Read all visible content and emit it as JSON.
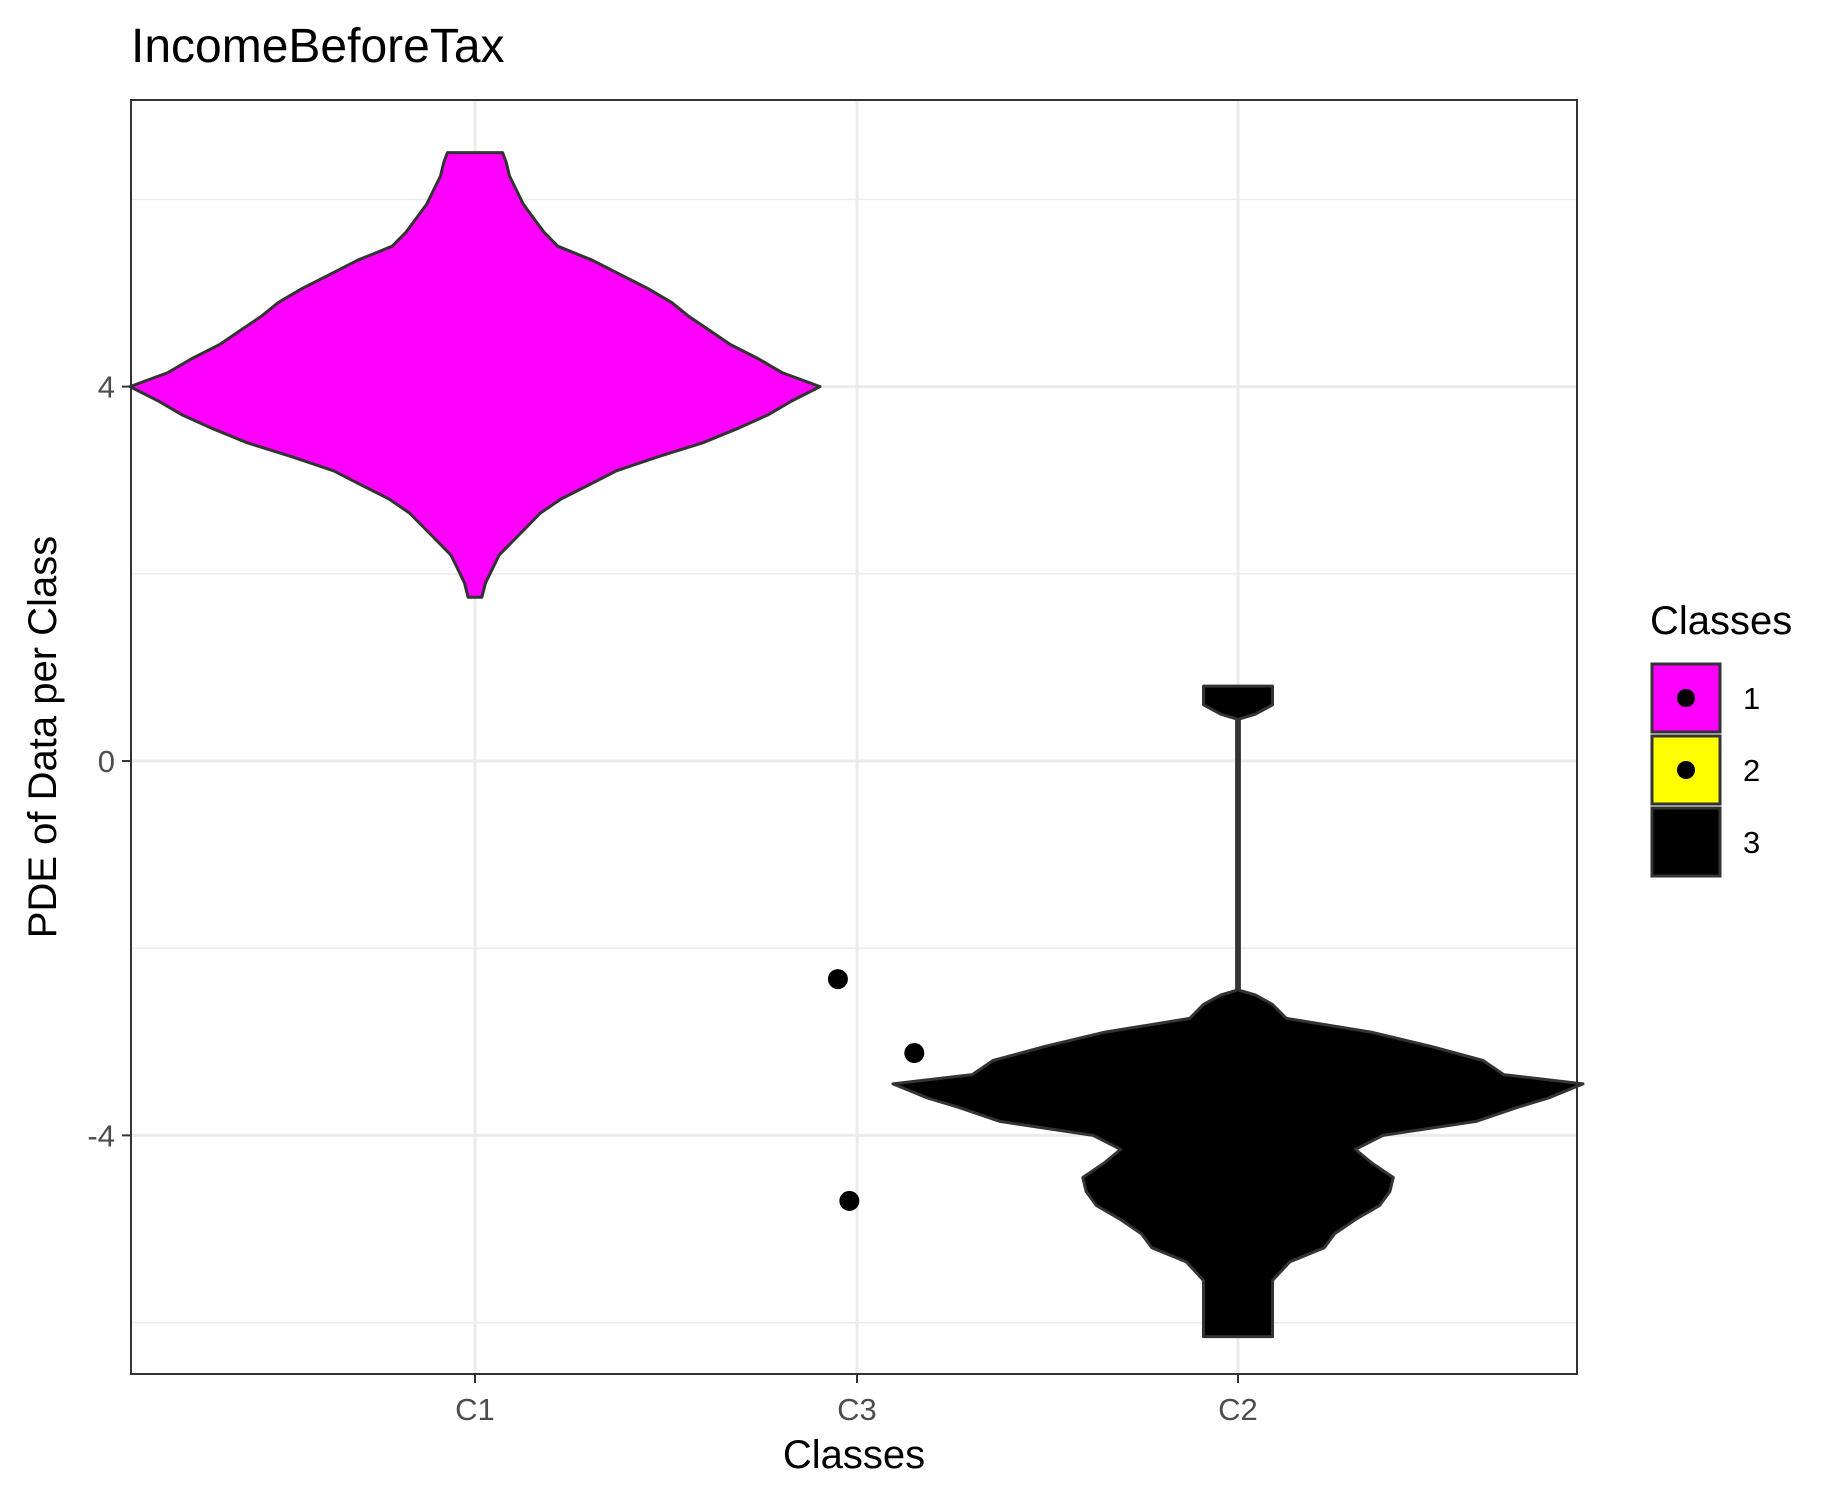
{
  "chart_data": {
    "type": "violin",
    "title": "IncomeBeforeTax",
    "xlabel": "Classes",
    "ylabel": "PDE of Data per Class",
    "categories": [
      "C1",
      "C3",
      "C2"
    ],
    "y_ticks": [
      4,
      0,
      -4
    ],
    "y_tick_labels": [
      "4",
      "0",
      "-4"
    ],
    "ylim": [
      -6.6,
      7.1
    ],
    "grid": true,
    "legend": {
      "title": "Classes",
      "position": "right",
      "entries": [
        {
          "label": "1",
          "color": "#FF00FF"
        },
        {
          "label": "2",
          "color": "#FFFF00"
        },
        {
          "label": "3",
          "color": "#000000"
        }
      ]
    },
    "violins": [
      {
        "category": "C1",
        "class": "1",
        "color": "#FF00FF",
        "ymin": 1.75,
        "ymax": 6.5,
        "profile": [
          [
            1.75,
            0.02
          ],
          [
            1.9,
            0.03
          ],
          [
            2.05,
            0.05
          ],
          [
            2.2,
            0.07
          ],
          [
            2.35,
            0.11
          ],
          [
            2.5,
            0.15
          ],
          [
            2.65,
            0.19
          ],
          [
            2.8,
            0.25
          ],
          [
            2.95,
            0.33
          ],
          [
            3.1,
            0.41
          ],
          [
            3.25,
            0.53
          ],
          [
            3.4,
            0.66
          ],
          [
            3.55,
            0.76
          ],
          [
            3.7,
            0.85
          ],
          [
            3.85,
            0.92
          ],
          [
            4.0,
            1.0
          ],
          [
            4.15,
            0.89
          ],
          [
            4.3,
            0.82
          ],
          [
            4.45,
            0.74
          ],
          [
            4.6,
            0.68
          ],
          [
            4.75,
            0.62
          ],
          [
            4.9,
            0.57
          ],
          [
            5.05,
            0.5
          ],
          [
            5.2,
            0.42
          ],
          [
            5.35,
            0.34
          ],
          [
            5.5,
            0.24
          ],
          [
            5.65,
            0.2
          ],
          [
            5.8,
            0.17
          ],
          [
            5.95,
            0.14
          ],
          [
            6.1,
            0.12
          ],
          [
            6.25,
            0.1
          ],
          [
            6.4,
            0.09
          ],
          [
            6.5,
            0.08
          ]
        ]
      },
      {
        "category": "C2",
        "class": "3",
        "color": "#000000",
        "ymin": -6.15,
        "ymax": 0.8,
        "profile": [
          [
            -6.15,
            0.1
          ],
          [
            -5.95,
            0.1
          ],
          [
            -5.75,
            0.1
          ],
          [
            -5.55,
            0.1
          ],
          [
            -5.35,
            0.15
          ],
          [
            -5.2,
            0.25
          ],
          [
            -5.05,
            0.28
          ],
          [
            -4.9,
            0.34
          ],
          [
            -4.75,
            0.41
          ],
          [
            -4.6,
            0.44
          ],
          [
            -4.45,
            0.45
          ],
          [
            -4.3,
            0.39
          ],
          [
            -4.15,
            0.34
          ],
          [
            -4.0,
            0.42
          ],
          [
            -3.85,
            0.69
          ],
          [
            -3.7,
            0.81
          ],
          [
            -3.6,
            0.9
          ],
          [
            -3.45,
            1.0
          ],
          [
            -3.35,
            0.77
          ],
          [
            -3.2,
            0.71
          ],
          [
            -3.05,
            0.56
          ],
          [
            -2.9,
            0.39
          ],
          [
            -2.75,
            0.14
          ],
          [
            -2.6,
            0.1
          ],
          [
            -2.5,
            0.05
          ],
          [
            -2.45,
            0.004
          ],
          [
            0.45,
            0.004
          ],
          [
            0.5,
            0.05
          ],
          [
            0.6,
            0.1
          ],
          [
            0.8,
            0.1
          ]
        ]
      }
    ],
    "points": [
      {
        "category": "C3",
        "class": "2",
        "jitter": -0.05,
        "y": -2.33
      },
      {
        "category": "C3",
        "class": "2",
        "jitter": 0.15,
        "y": -3.12
      },
      {
        "category": "C3",
        "class": "2",
        "jitter": -0.02,
        "y": -4.7
      }
    ]
  }
}
